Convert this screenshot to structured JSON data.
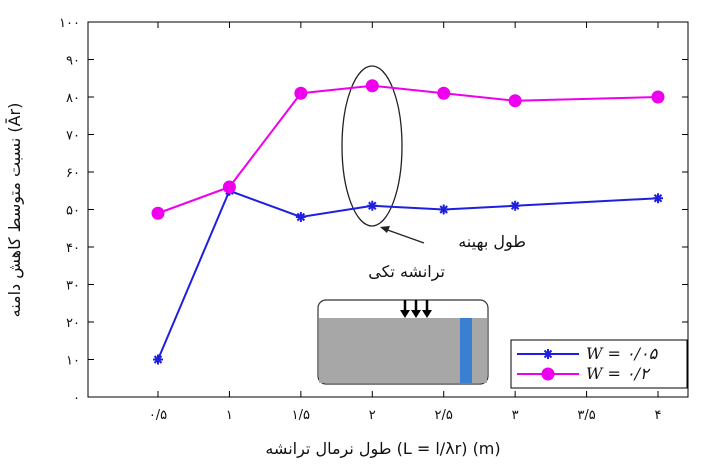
{
  "chart_data": {
    "type": "line",
    "x_tick_labels": [
      "۰/۵",
      "۱",
      "۱/۵",
      "۲",
      "۲/۵",
      "۳",
      "۳/۵",
      "۴"
    ],
    "y_tick_labels": [
      "۰",
      "۱۰",
      "۲۰",
      "۳۰",
      "۴۰",
      "۵۰",
      "۶۰",
      "۷۰",
      "۸۰",
      "۹۰",
      "۱۰۰"
    ],
    "x": [
      0.5,
      1,
      1.5,
      2,
      2.5,
      3,
      3.5,
      4
    ],
    "xlim": [
      0.5,
      4
    ],
    "ylim": [
      0,
      100
    ],
    "xlabel": "طول نرمال ترانشه (L = l/λr) (m)",
    "ylabel": "نسبت متوسط کاهش دامنه (Ār)",
    "series": [
      {
        "name": "W = ۰/۰۵",
        "color": "#1f1fe0",
        "marker": "asterisk",
        "values": [
          10,
          55,
          48,
          51,
          50,
          51,
          null,
          53
        ]
      },
      {
        "name": "W = ۰/۲",
        "color": "#ee00ee",
        "marker": "circle",
        "values": [
          49,
          56,
          81,
          83,
          81,
          79,
          null,
          80
        ]
      }
    ],
    "annotations": [
      "طول بهینه",
      "ترانشه تکی"
    ],
    "legend_position": "bottom-right",
    "grid": false
  }
}
